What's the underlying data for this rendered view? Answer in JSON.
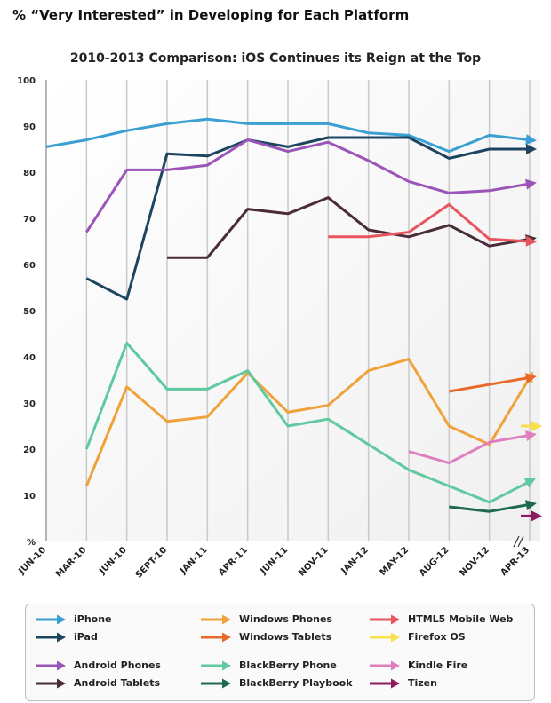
{
  "header": {
    "title": "% “Very Interested” in Developing for Each Platform"
  },
  "chart_data": {
    "type": "line",
    "title": "2010-2013 Comparison: iOS Continues its Reign at the Top",
    "xlabel": "",
    "ylabel": "",
    "categories": [
      "JUN-10",
      "MAR-10",
      "JUN-10",
      "SEPT-10",
      "JAN-11",
      "APR-11",
      "JUN-11",
      "NOV-11",
      "JAN-12",
      "MAY-12",
      "AUG-12",
      "NOV-12",
      "APR-13"
    ],
    "ylim": [
      0,
      100
    ],
    "yticks": [
      10,
      20,
      30,
      40,
      50,
      60,
      70,
      80,
      90,
      100
    ],
    "y_zero_label": "%",
    "grid": "vertical",
    "legend_position": "bottom",
    "series": [
      {
        "name": "iPhone",
        "color": "#3aa0d4",
        "values": [
          85.5,
          87,
          89,
          90.5,
          91.5,
          90.5,
          90.5,
          90.5,
          88.5,
          88,
          84.5,
          88,
          87
        ]
      },
      {
        "name": "iPad",
        "color": "#1d4560",
        "values": [
          null,
          57,
          52.5,
          84,
          83.5,
          87,
          85.5,
          87.5,
          87.5,
          87.5,
          83,
          85,
          85
        ]
      },
      {
        "name": "Android Phones",
        "color": "#9b54b8",
        "values": [
          null,
          67,
          80.5,
          80.5,
          81.5,
          87,
          84.5,
          86.5,
          82.5,
          78,
          75.5,
          76,
          77.5
        ]
      },
      {
        "name": "Android Tablets",
        "color": "#4a2b38",
        "values": [
          null,
          null,
          null,
          61.5,
          61.5,
          72,
          71,
          74.5,
          67.5,
          66,
          68.5,
          64,
          65.5
        ]
      },
      {
        "name": "HTML5 Mobile Web",
        "color": "#e8555f",
        "values": [
          null,
          null,
          null,
          null,
          null,
          null,
          null,
          66,
          66,
          67,
          73,
          65.5,
          65
        ]
      },
      {
        "name": "Windows Phones",
        "color": "#f0a23a",
        "values": [
          null,
          12,
          33.5,
          26,
          27,
          36.5,
          28,
          29.5,
          37,
          39.5,
          25,
          21,
          35.5
        ]
      },
      {
        "name": "Windows Tablets",
        "color": "#e86a2a",
        "values": [
          null,
          null,
          null,
          null,
          null,
          null,
          null,
          null,
          null,
          null,
          32.5,
          34,
          35.5
        ]
      },
      {
        "name": "BlackBerry Phone",
        "color": "#5fc9a0",
        "values": [
          null,
          20,
          43,
          33,
          33,
          37,
          25,
          26.5,
          21,
          15.5,
          12,
          8.5,
          13
        ]
      },
      {
        "name": "BlackBerry Playbook",
        "color": "#1e6a4d",
        "values": [
          null,
          null,
          null,
          null,
          null,
          null,
          null,
          null,
          null,
          null,
          7.5,
          6.5,
          8
        ]
      },
      {
        "name": "Kindle Fire",
        "color": "#df7fbf",
        "values": [
          null,
          null,
          null,
          null,
          null,
          null,
          null,
          null,
          null,
          19.5,
          17,
          21.5,
          23
        ]
      },
      {
        "name": "Firefox OS",
        "color": "#f7e04a",
        "values": [
          null,
          null,
          null,
          null,
          null,
          null,
          null,
          null,
          null,
          null,
          null,
          null,
          25
        ]
      },
      {
        "name": "Tizen",
        "color": "#8c1a5e",
        "values": [
          null,
          null,
          null,
          null,
          null,
          null,
          null,
          null,
          null,
          null,
          null,
          null,
          5.5
        ]
      }
    ]
  }
}
